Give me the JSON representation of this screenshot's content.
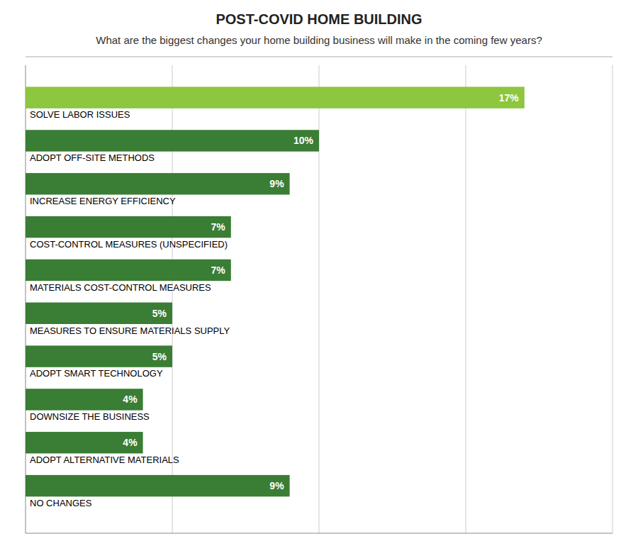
{
  "chart_data": {
    "type": "bar",
    "orientation": "horizontal",
    "title": "POST-COVID HOME BUILDING",
    "subtitle": "What are the biggest changes your home building business will make in the coming few years?",
    "categories": [
      "SOLVE LABOR ISSUES",
      "ADOPT OFF-SITE METHODS",
      "INCREASE ENERGY EFFICIENCY",
      "COST-CONTROL MEASURES (UNSPECIFIED)",
      "MATERIALS COST-CONTROL MEASURES",
      "MEASURES TO ENSURE MATERIALS SUPPLY",
      "ADOPT SMART TECHNOLOGY",
      "DOWNSIZE THE BUSINESS",
      "ADOPT ALTERNATIVE MATERIALS",
      "NO CHANGES"
    ],
    "values": [
      17,
      10,
      9,
      7,
      7,
      5,
      5,
      4,
      4,
      9
    ],
    "value_labels": [
      "17%",
      "10%",
      "9%",
      "7%",
      "7%",
      "5%",
      "5%",
      "4%",
      "4%",
      "9%"
    ],
    "colors": [
      "#8dc63f",
      "#3a7d34",
      "#3a7d34",
      "#3a7d34",
      "#3a7d34",
      "#3a7d34",
      "#3a7d34",
      "#3a7d34",
      "#3a7d34",
      "#3a7d34"
    ],
    "xlim": [
      0,
      20
    ],
    "xticks": [
      5,
      10,
      15,
      20
    ],
    "grid": true,
    "data_labels": true,
    "tick_labels": false
  }
}
